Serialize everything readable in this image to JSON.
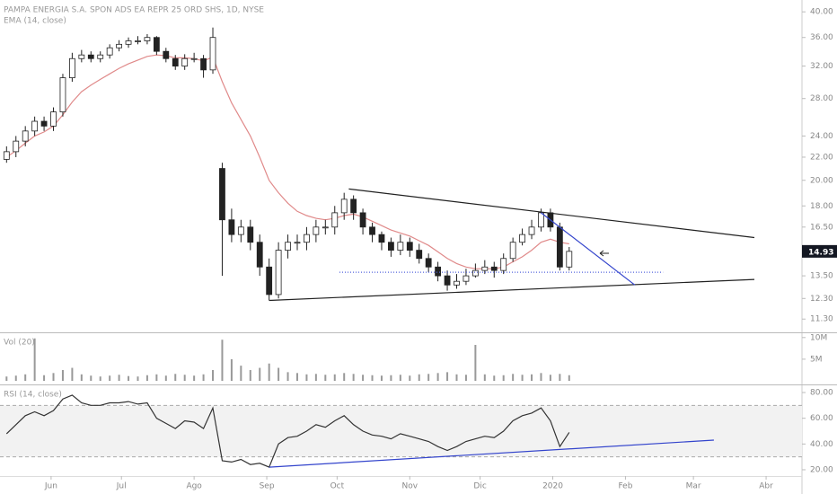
{
  "chart_data": [
    {
      "type": "candlestick",
      "title": "PAMPA ENERGIA S.A. SPON ADS EA REPR 25 ORD SHS, 1D, NYSE",
      "log_scale": true,
      "xlim": [
        9.2,
        351.3
      ],
      "ylim": [
        10.7,
        42
      ],
      "yticks": [
        {
          "value": 40,
          "label": "40.00"
        },
        {
          "value": 36,
          "label": "36.00"
        },
        {
          "value": 32,
          "label": "32.00"
        },
        {
          "value": 28,
          "label": "28.00"
        },
        {
          "value": 24,
          "label": "24.00"
        },
        {
          "value": 22,
          "label": "22.00"
        },
        {
          "value": 20,
          "label": "20.00"
        },
        {
          "value": 18,
          "label": "18.00"
        },
        {
          "value": 16.5,
          "label": "16.50"
        },
        {
          "value": 13.5,
          "label": "13.50"
        },
        {
          "value": 12.3,
          "label": "12.30"
        },
        {
          "value": 11.3,
          "label": "11.30"
        }
      ],
      "up_color": "#ffffff",
      "down_color": "#222222",
      "wick_color": "#222222",
      "x": [
        12,
        16,
        20,
        24,
        28,
        32,
        36,
        40,
        44,
        48,
        52,
        56,
        60,
        64,
        68,
        72,
        76,
        80,
        84,
        88,
        92,
        96,
        100,
        104,
        108,
        112,
        116,
        120,
        124,
        128,
        132,
        136,
        140,
        144,
        148,
        152,
        156,
        160,
        164,
        168,
        172,
        176,
        180,
        184,
        188,
        192,
        196,
        200,
        204,
        208,
        212,
        216,
        220,
        224,
        228,
        232,
        236,
        240,
        244,
        248,
        252
      ],
      "open": [
        21.8,
        22.5,
        23.5,
        24.5,
        25.5,
        25.0,
        26.5,
        30.5,
        33.0,
        33.5,
        33.0,
        33.5,
        34.5,
        35.0,
        35.5,
        35.5,
        36.0,
        34.0,
        33.0,
        32.0,
        33.0,
        33.0,
        31.5,
        21.0,
        17.0,
        16.0,
        16.5,
        15.5,
        14.0,
        12.5,
        15.0,
        15.5,
        15.5,
        16.0,
        16.5,
        16.5,
        17.5,
        18.5,
        17.5,
        16.5,
        16.0,
        15.5,
        15.0,
        15.5,
        15.0,
        14.5,
        14.0,
        13.5,
        13.0,
        13.2,
        13.5,
        13.8,
        14.0,
        13.8,
        14.5,
        15.5,
        16.0,
        16.5,
        17.5,
        16.5,
        14.0
      ],
      "high": [
        23.0,
        24.0,
        25.0,
        26.0,
        26.0,
        27.0,
        31.0,
        33.8,
        34.2,
        34.0,
        34.0,
        35.0,
        35.6,
        36.0,
        36.2,
        36.5,
        36.2,
        34.5,
        33.5,
        33.6,
        33.8,
        33.5,
        37.5,
        21.5,
        17.8,
        17.0,
        17.0,
        16.0,
        14.5,
        15.5,
        16.0,
        16.0,
        16.5,
        17.0,
        17.0,
        18.0,
        19.0,
        18.8,
        17.8,
        16.8,
        16.2,
        15.8,
        16.0,
        15.8,
        15.4,
        14.8,
        14.3,
        13.8,
        13.6,
        13.9,
        14.2,
        14.4,
        14.3,
        14.8,
        15.8,
        16.4,
        17.0,
        17.8,
        17.8,
        16.8,
        15.2
      ],
      "low": [
        21.5,
        22.0,
        23.0,
        24.0,
        24.5,
        24.5,
        26.0,
        30.0,
        32.5,
        32.5,
        32.5,
        33.0,
        34.0,
        34.5,
        35.0,
        35.0,
        33.5,
        32.5,
        31.5,
        31.5,
        32.5,
        30.5,
        31.0,
        13.5,
        15.5,
        15.5,
        15.0,
        13.5,
        12.2,
        12.3,
        14.5,
        15.0,
        15.0,
        15.5,
        16.0,
        16.0,
        17.0,
        17.0,
        16.0,
        15.5,
        15.0,
        14.6,
        14.7,
        14.6,
        14.2,
        13.7,
        13.2,
        12.7,
        12.8,
        13.0,
        13.4,
        13.6,
        13.4,
        13.6,
        14.3,
        15.3,
        15.7,
        16.2,
        16.2,
        13.8,
        13.8
      ],
      "close": [
        22.5,
        23.5,
        24.5,
        25.5,
        25.0,
        26.5,
        30.5,
        33.0,
        33.5,
        33.0,
        33.5,
        34.5,
        35.0,
        35.5,
        35.5,
        36.0,
        34.0,
        33.0,
        32.0,
        33.0,
        33.0,
        31.5,
        36.0,
        17.0,
        16.0,
        16.5,
        15.5,
        14.0,
        12.5,
        15.0,
        15.5,
        15.5,
        16.0,
        16.5,
        16.5,
        17.5,
        18.5,
        17.5,
        16.5,
        16.0,
        15.5,
        15.0,
        15.5,
        15.0,
        14.5,
        14.0,
        13.5,
        13.0,
        13.2,
        13.5,
        13.8,
        14.0,
        13.8,
        14.5,
        15.5,
        16.0,
        16.5,
        17.5,
        16.5,
        14.0,
        14.93
      ],
      "series": [
        {
          "name": "EMA (14, close)",
          "color": "#e08a8a",
          "values": [
            22.0,
            22.6,
            23.3,
            24.0,
            24.4,
            25.0,
            26.2,
            27.6,
            28.8,
            29.6,
            30.3,
            31.0,
            31.7,
            32.3,
            32.8,
            33.3,
            33.5,
            33.4,
            33.1,
            33.1,
            33.0,
            32.7,
            33.2,
            30.0,
            27.5,
            25.7,
            24.0,
            22.0,
            20.0,
            19.0,
            18.2,
            17.6,
            17.3,
            17.1,
            17.0,
            17.1,
            17.3,
            17.4,
            17.2,
            16.9,
            16.6,
            16.3,
            16.1,
            15.9,
            15.6,
            15.3,
            14.9,
            14.5,
            14.2,
            14.0,
            13.9,
            13.9,
            13.9,
            14.0,
            14.3,
            14.6,
            15.0,
            15.5,
            15.7,
            15.5,
            15.4
          ]
        }
      ],
      "trendlines": [
        {
          "x": [
            158,
            331
          ],
          "y": [
            19.3,
            15.8
          ],
          "color": "#222222",
          "style": "solid"
        },
        {
          "x": [
            124,
            331
          ],
          "y": [
            12.2,
            13.3
          ],
          "color": "#222222",
          "style": "solid"
        },
        {
          "x": [
            240,
            280
          ],
          "y": [
            17.5,
            13.0
          ],
          "color": "#3344cc",
          "style": "solid"
        },
        {
          "x": [
            154,
            292
          ],
          "y": [
            13.7,
            13.7
          ],
          "color": "#5566dd",
          "style": "dotted"
        }
      ]
    },
    {
      "type": "bar",
      "title": "Vol (20)",
      "color": "#999999",
      "xlim": [
        9.2,
        351.3
      ],
      "ylim": [
        0,
        11000000
      ],
      "yticks": [
        {
          "value": 10000000,
          "label": "10M"
        },
        {
          "value": 5000000,
          "label": "5M"
        }
      ],
      "x": [
        12,
        16,
        20,
        24,
        28,
        32,
        36,
        40,
        44,
        48,
        52,
        56,
        60,
        64,
        68,
        72,
        76,
        80,
        84,
        88,
        92,
        96,
        100,
        104,
        108,
        112,
        116,
        120,
        124,
        128,
        132,
        136,
        140,
        144,
        148,
        152,
        156,
        160,
        164,
        168,
        172,
        176,
        180,
        184,
        188,
        192,
        196,
        200,
        204,
        208,
        212,
        216,
        220,
        224,
        228,
        232,
        236,
        240,
        244,
        248,
        252
      ],
      "values": [
        1000000,
        1200000,
        1500000,
        9800000,
        1300000,
        1800000,
        2500000,
        3000000,
        1500000,
        1200000,
        1000000,
        1200000,
        1400000,
        1100000,
        1000000,
        1300000,
        1500000,
        1200000,
        1600000,
        1400000,
        1200000,
        1500000,
        2500000,
        9500000,
        5000000,
        3500000,
        2500000,
        3000000,
        4000000,
        3000000,
        2000000,
        1800000,
        1500000,
        1600000,
        1400000,
        1500000,
        1800000,
        1600000,
        1400000,
        1300000,
        1200000,
        1300000,
        1400000,
        1200000,
        1500000,
        1600000,
        1800000,
        2000000,
        1500000,
        1400000,
        8300000,
        1500000,
        1200000,
        1300000,
        1600000,
        1400000,
        1500000,
        1800000,
        1400000,
        1600000,
        1300000
      ]
    },
    {
      "type": "line",
      "title": "RSI (14, close)",
      "xlim": [
        9.2,
        351.3
      ],
      "ylim": [
        15.1,
        85.6
      ],
      "yticks": [
        {
          "value": 80,
          "label": "80.00"
        },
        {
          "value": 60,
          "label": "60.00"
        },
        {
          "value": 40,
          "label": "40.00"
        },
        {
          "value": 20,
          "label": "20.00"
        }
      ],
      "band": [
        30,
        70
      ],
      "band_color": "#f2f2f2",
      "xticks": [
        {
          "value": 31,
          "label": "Jun"
        },
        {
          "value": 61,
          "label": "Jul"
        },
        {
          "value": 92,
          "label": "Ago"
        },
        {
          "value": 123,
          "label": "Sep"
        },
        {
          "value": 153,
          "label": "Oct"
        },
        {
          "value": 184,
          "label": "Nov"
        },
        {
          "value": 214,
          "label": "Dic"
        },
        {
          "value": 245,
          "label": "2020"
        },
        {
          "value": 276,
          "label": "Feb"
        },
        {
          "value": 305,
          "label": "Mar"
        },
        {
          "value": 336,
          "label": "Abr"
        }
      ],
      "x": [
        12,
        16,
        20,
        24,
        28,
        32,
        36,
        40,
        44,
        48,
        52,
        56,
        60,
        64,
        68,
        72,
        76,
        80,
        84,
        88,
        92,
        96,
        100,
        104,
        108,
        112,
        116,
        120,
        124,
        128,
        132,
        136,
        140,
        144,
        148,
        152,
        156,
        160,
        164,
        168,
        172,
        176,
        180,
        184,
        188,
        192,
        196,
        200,
        204,
        208,
        212,
        216,
        220,
        224,
        228,
        232,
        236,
        240,
        244,
        248,
        252
      ],
      "series": [
        {
          "color": "#333333",
          "values": [
            48,
            55,
            62,
            65,
            62,
            66,
            75,
            78,
            72,
            70,
            70,
            72,
            72,
            73,
            71,
            72,
            60,
            56,
            52,
            58,
            57,
            52,
            68,
            27,
            26,
            28,
            24,
            25,
            22,
            40,
            45,
            46,
            50,
            55,
            53,
            58,
            62,
            55,
            50,
            47,
            46,
            44,
            48,
            46,
            44,
            42,
            38,
            35,
            38,
            42,
            44,
            46,
            45,
            50,
            58,
            62,
            64,
            68,
            58,
            38,
            49
          ]
        }
      ],
      "trendlines": [
        {
          "x": [
            124,
            313.7
          ],
          "y": [
            22,
            43
          ],
          "color": "#3344cc",
          "style": "solid"
        }
      ]
    }
  ]
}
